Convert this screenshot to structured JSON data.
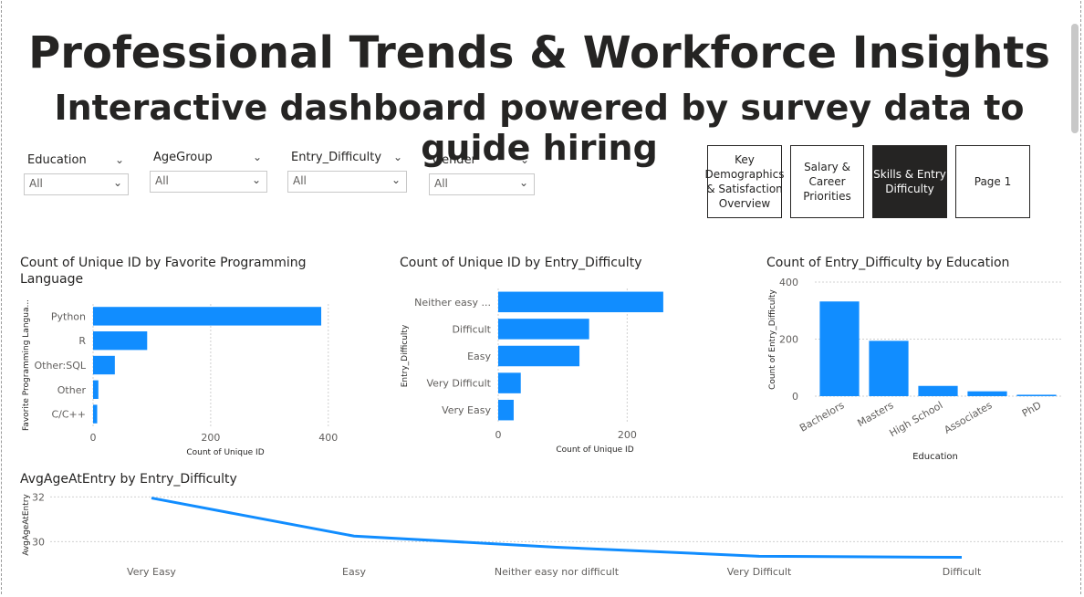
{
  "header": {
    "title": "Professional Trends & Workforce Insights",
    "subtitle": "Interactive dashboard powered by survey data to guide hiring"
  },
  "slicers": [
    {
      "label": "Education",
      "value": "All"
    },
    {
      "label": "AgeGroup",
      "value": "All"
    },
    {
      "label": "Entry_Difficulty",
      "value": "All"
    },
    {
      "label": "Gender",
      "value": "All"
    }
  ],
  "nav": [
    {
      "label": "Key Demographics & Satisfaction Overview",
      "active": false
    },
    {
      "label": "Salary & Career Priorities",
      "active": false
    },
    {
      "label": "Skills & Entry Difficulty",
      "active": true
    },
    {
      "label": "Page 1",
      "active": false
    }
  ],
  "colors": {
    "bar": "#118DFF",
    "line": "#118DFF",
    "text": "#252423",
    "axis": "#605e5c"
  },
  "icons": {
    "dropdown": "chevron-down-icon"
  },
  "chart_data": [
    {
      "type": "bar",
      "orientation": "horizontal",
      "title": "Count of Unique ID by Favorite Programming Language",
      "xlabel": "Count of Unique ID",
      "ylabel": "Favorite Programming Langua...",
      "categories": [
        "Python",
        "R",
        "Other:SQL",
        "Other",
        "C/C++"
      ],
      "values": [
        388,
        92,
        37,
        9,
        7
      ],
      "xlim": [
        0,
        450
      ],
      "xticks": [
        0,
        200,
        400
      ]
    },
    {
      "type": "bar",
      "orientation": "horizontal",
      "title": "Count of Unique ID by Entry_Difficulty",
      "xlabel": "Count of Unique ID",
      "ylabel": "Entry_Difficulty",
      "categories": [
        "Neither easy ...",
        "Difficult",
        "Easy",
        "Very Difficult",
        "Very Easy"
      ],
      "values": [
        256,
        141,
        126,
        35,
        24
      ],
      "xlim": [
        0,
        300
      ],
      "xticks": [
        0,
        200
      ]
    },
    {
      "type": "bar",
      "orientation": "vertical",
      "title": "Count of Entry_Difficulty by Education",
      "xlabel": "Education",
      "ylabel": "Count of Entry_Difficulty",
      "categories": [
        "Bachelors",
        "Masters",
        "High School",
        "Associates",
        "PhD"
      ],
      "values": [
        332,
        194,
        36,
        17,
        5
      ],
      "ylim": [
        0,
        400
      ],
      "yticks": [
        0,
        200,
        400
      ]
    },
    {
      "type": "line",
      "title": "AvgAgeAtEntry by Entry_Difficulty",
      "xlabel": "",
      "ylabel": "AvgAgeAtEntry",
      "categories": [
        "Very Easy",
        "Easy",
        "Neither easy nor difficult",
        "Very Difficult",
        "Difficult"
      ],
      "values": [
        31.95,
        30.25,
        29.75,
        29.35,
        29.3
      ],
      "ylim": [
        29.2,
        32.3
      ],
      "yticks": [
        30,
        32
      ]
    }
  ]
}
